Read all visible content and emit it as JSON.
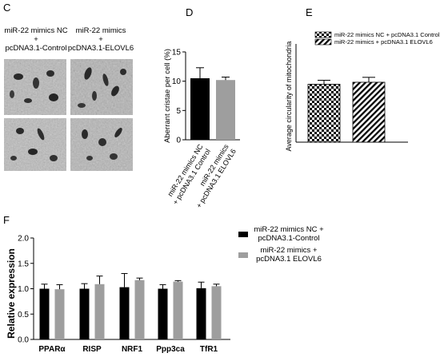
{
  "panels": {
    "c": {
      "letter": "C",
      "col1": [
        "miR-22 mimics NC",
        "+",
        "pcDNA3.1-Control"
      ],
      "col2": [
        "miR-22 mimics",
        "+",
        "pcDNA3.1-ELOVL6"
      ]
    },
    "d": {
      "letter": "D"
    },
    "e": {
      "letter": "E"
    },
    "f": {
      "letter": "F"
    }
  },
  "chart_data": [
    {
      "id": "D",
      "type": "bar",
      "ylabel": "Aberrant cristae per cell (%)",
      "ylim": [
        0,
        15
      ],
      "yticks": [
        0,
        5,
        10,
        15
      ],
      "categories": [
        "miR-22 mimics NC + pcDNA3.1 Control",
        "miR-22 mimics + pcDNA3.1 ELOVL6"
      ],
      "category_lines": [
        [
          "miR-22 mimics NC",
          "+ pcDNA3.1 Control"
        ],
        [
          "miR-22 mimics",
          "+ pcDNA3.1 ELOVL6"
        ]
      ],
      "values": [
        10.5,
        10.2
      ],
      "errors": [
        1.8,
        0.5
      ],
      "colors": [
        "#000000",
        "#9e9e9e"
      ]
    },
    {
      "id": "E",
      "type": "bar",
      "ylabel": "Average circularity of mitochondria",
      "ylim": [
        0,
        1.0
      ],
      "categories": [
        "miR-22 mimics NC + pcDNA3.1 Control",
        "miR-22 mimics + pcDNA3.1 ELOVL6"
      ],
      "values": [
        0.59,
        0.61
      ],
      "errors": [
        0.04,
        0.05
      ],
      "fills": [
        "checker",
        "stripes"
      ],
      "legend": [
        "miR-22 mimics NC + pcDNA3.1 Control",
        "miR-22 mimics + pcDNA3.1 ELOVL6"
      ],
      "legend_position": "top"
    },
    {
      "id": "F",
      "type": "bar",
      "ylabel": "Relative expression",
      "ylim": [
        0,
        2.0
      ],
      "yticks": [
        0.0,
        0.5,
        1.0,
        1.5,
        2.0
      ],
      "categories": [
        "PPARα",
        "RISP",
        "NRF1",
        "Ppp3ca",
        "TfR1"
      ],
      "series": [
        {
          "name": "miR-22 mimics NC + pcDNA3.1-Control",
          "legend_lines": [
            "miR-22 mimics NC +",
            "pcDNA3.1-Control"
          ],
          "color": "#000000",
          "values": [
            1.0,
            1.0,
            1.03,
            1.0,
            1.01
          ],
          "errors": [
            0.09,
            0.1,
            0.27,
            0.08,
            0.12
          ]
        },
        {
          "name": "miR-22 mimics + pcDNA3.1 ELOVL6",
          "legend_lines": [
            "miR-22 mimics +",
            "pcDNA3.1 ELOVL6"
          ],
          "color": "#9e9e9e",
          "values": [
            0.99,
            1.09,
            1.17,
            1.14,
            1.05
          ],
          "errors": [
            0.09,
            0.16,
            0.04,
            0.02,
            0.04
          ]
        }
      ],
      "legend_position": "right"
    }
  ]
}
